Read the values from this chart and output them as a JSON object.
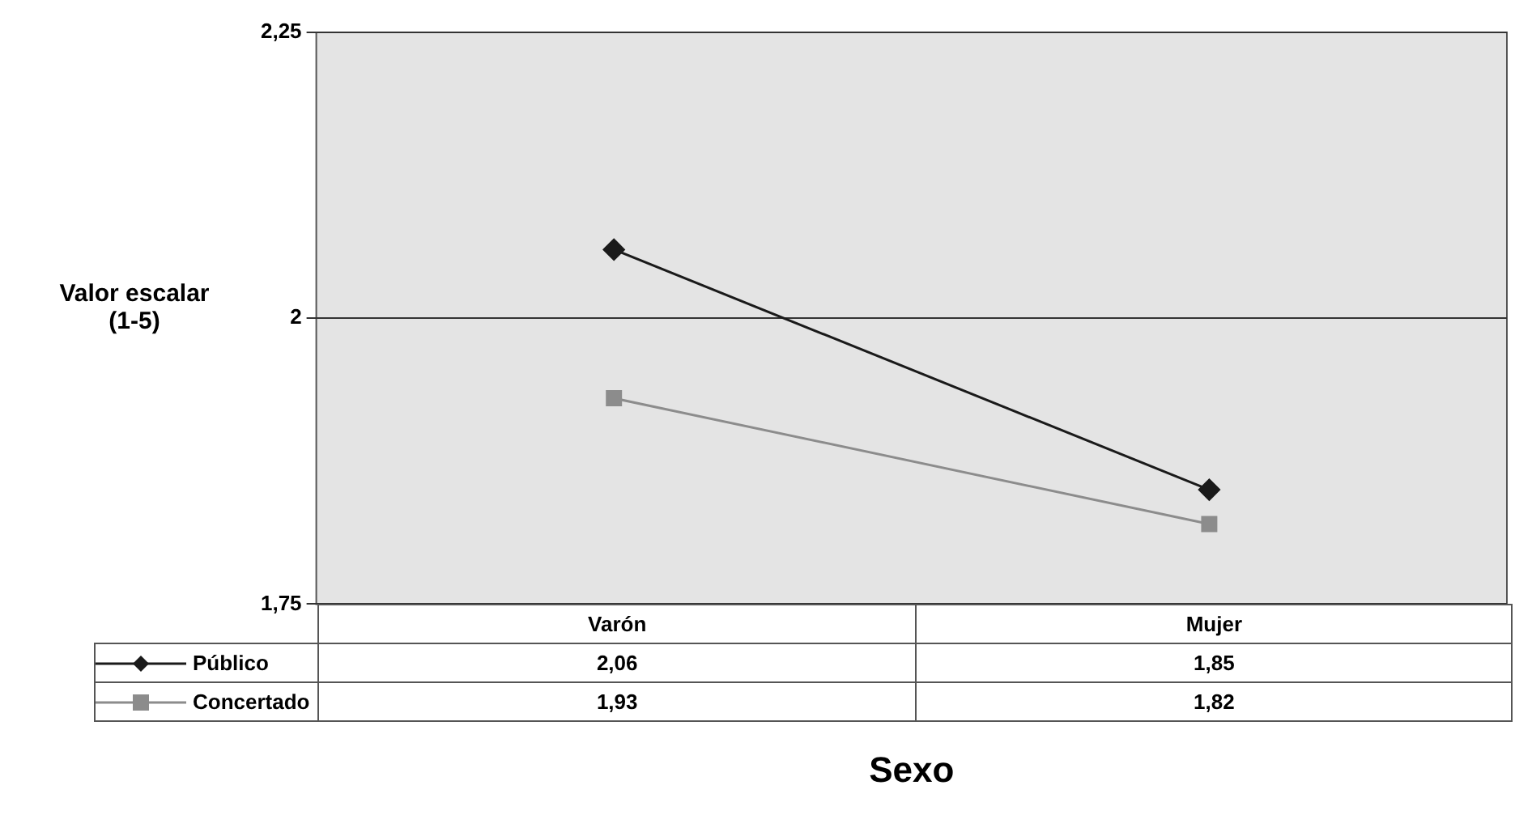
{
  "chart_data": {
    "type": "line",
    "xlabel": "Sexo",
    "ylabel": "Valor escalar\n(1-5)",
    "categories": [
      "Varón",
      "Mujer"
    ],
    "series": [
      {
        "name": "Público",
        "color": "#1a1a1a",
        "marker": "diamond",
        "values": [
          2.06,
          1.85
        ],
        "value_labels": [
          "2,06",
          "1,85"
        ]
      },
      {
        "name": "Concertado",
        "color": "#8c8c8c",
        "marker": "square",
        "values": [
          1.93,
          1.82
        ],
        "value_labels": [
          "1,93",
          "1,82"
        ]
      }
    ],
    "ylim": [
      1.75,
      2.25
    ],
    "yticks": [
      {
        "value": 1.75,
        "label": "1,75"
      },
      2,
      {
        "value": 2.25,
        "label": "2,25"
      }
    ],
    "grid": "y",
    "legend": "bottom"
  }
}
